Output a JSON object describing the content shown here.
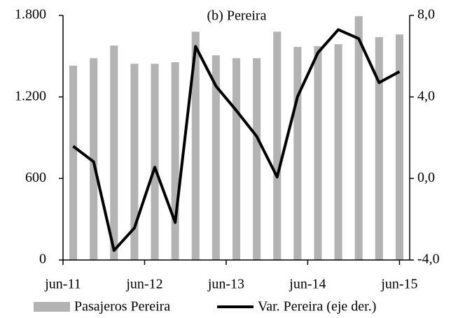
{
  "chart_data": {
    "type": "bar-line",
    "subtitle": "(b) Pereira",
    "categories": [
      "jun-11",
      null,
      null,
      null,
      "jun-12",
      null,
      null,
      null,
      "jun-13",
      null,
      null,
      null,
      "jun-14",
      null,
      null,
      null,
      "jun-15"
    ],
    "series": [
      {
        "name": "Pasajeros Pereira",
        "color": "#b3b3b3",
        "kind": "bar",
        "values": [
          1430,
          1485,
          1578,
          1444,
          1444,
          1455,
          1680,
          1506,
          1485,
          1485,
          1680,
          1568,
          1573,
          1588,
          1794,
          1640,
          1660
        ]
      },
      {
        "name": "Var. Pereira (eje der.)",
        "color": "#000000",
        "kind": "line",
        "axis": "y2",
        "values": [
          1.58,
          0.82,
          -3.53,
          -2.43,
          0.55,
          -2.16,
          6.48,
          4.53,
          3.33,
          2.06,
          0.07,
          4.01,
          6.17,
          7.3,
          6.86,
          4.7,
          5.24
        ]
      }
    ],
    "ylim": [
      0,
      1800
    ],
    "yticks": [
      0,
      600,
      {
        "value": 1200,
        "label": "1.200"
      },
      {
        "value": 1800,
        "label": "1.800"
      }
    ],
    "y2lim": [
      -4,
      8
    ],
    "y2ticks": [
      {
        "value": -4,
        "label": "-4,0"
      },
      {
        "value": 0,
        "label": "0,0"
      },
      {
        "value": 4,
        "label": "4,0"
      },
      {
        "value": 8,
        "label": "8,0"
      }
    ]
  }
}
